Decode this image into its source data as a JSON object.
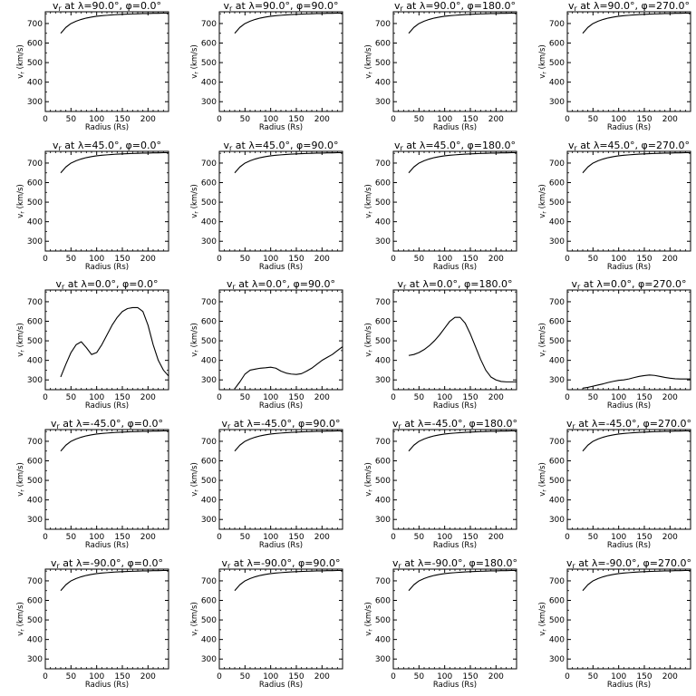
{
  "chart_data": {
    "type": "line",
    "layout": "grid",
    "rows": 5,
    "cols": 4,
    "xlabel": "Radius (Rs)",
    "ylabel": "v_r (km/s)",
    "xlim": [
      0,
      240
    ],
    "ylim": [
      250,
      760
    ],
    "xticks": [
      0,
      50,
      100,
      150,
      200
    ],
    "yticks": [
      300,
      400,
      500,
      600,
      700
    ],
    "line_color": "#000000",
    "panels": [
      {
        "title": "v_r at λ=90.0°, φ=0.0°",
        "lat": "90.0",
        "phi": "0.0",
        "profile": "fast"
      },
      {
        "title": "v_r at λ=90.0°, φ=90.0°",
        "lat": "90.0",
        "phi": "90.0",
        "profile": "fast"
      },
      {
        "title": "v_r at λ=90.0°, φ=180.0°",
        "lat": "90.0",
        "phi": "180.0",
        "profile": "fast"
      },
      {
        "title": "v_r at λ=90.0°, φ=270.0°",
        "lat": "90.0",
        "phi": "270.0",
        "profile": "fast"
      },
      {
        "title": "v_r at λ=45.0°, φ=0.0°",
        "lat": "45.0",
        "phi": "0.0",
        "profile": "fast"
      },
      {
        "title": "v_r at λ=45.0°, φ=90.0°",
        "lat": "45.0",
        "phi": "90.0",
        "profile": "fast"
      },
      {
        "title": "v_r at λ=45.0°, φ=180.0°",
        "lat": "45.0",
        "phi": "180.0",
        "profile": "fast"
      },
      {
        "title": "v_r at λ=45.0°, φ=270.0°",
        "lat": "45.0",
        "phi": "270.0",
        "profile": "fast"
      },
      {
        "title": "v_r at λ=0.0°, φ=0.0°",
        "lat": "0.0",
        "phi": "0.0",
        "x": [
          30,
          40,
          50,
          60,
          70,
          80,
          90,
          100,
          110,
          120,
          130,
          140,
          150,
          160,
          170,
          180,
          190,
          200,
          210,
          220,
          230,
          240
        ],
        "y": [
          315,
          380,
          440,
          480,
          495,
          465,
          430,
          440,
          480,
          530,
          580,
          620,
          650,
          665,
          670,
          670,
          650,
          580,
          480,
          400,
          350,
          320
        ]
      },
      {
        "title": "v_r at λ=0.0°, φ=90.0°",
        "lat": "0.0",
        "phi": "90.0",
        "x": [
          30,
          40,
          50,
          60,
          70,
          80,
          90,
          100,
          110,
          120,
          130,
          140,
          150,
          160,
          170,
          180,
          190,
          200,
          210,
          220,
          230,
          240
        ],
        "y": [
          255,
          290,
          330,
          350,
          355,
          360,
          362,
          365,
          360,
          345,
          335,
          330,
          328,
          332,
          345,
          360,
          380,
          400,
          415,
          430,
          450,
          470
        ]
      },
      {
        "title": "v_r at λ=0.0°, φ=180.0°",
        "lat": "0.0",
        "phi": "180.0",
        "x": [
          30,
          40,
          50,
          60,
          70,
          80,
          90,
          100,
          110,
          120,
          130,
          140,
          150,
          160,
          170,
          180,
          190,
          200,
          210,
          220,
          230,
          240
        ],
        "y": [
          425,
          430,
          440,
          455,
          475,
          500,
          530,
          565,
          600,
          620,
          620,
          590,
          535,
          470,
          405,
          350,
          315,
          300,
          292,
          290,
          290,
          290
        ]
      },
      {
        "title": "v_r at λ=0.0°, φ=270.0°",
        "lat": "0.0",
        "phi": "270.0",
        "x": [
          30,
          40,
          50,
          60,
          70,
          80,
          90,
          100,
          110,
          120,
          130,
          140,
          150,
          160,
          170,
          180,
          190,
          200,
          210,
          220,
          230,
          240
        ],
        "y": [
          258,
          262,
          268,
          274,
          280,
          287,
          293,
          298,
          300,
          305,
          312,
          318,
          322,
          325,
          323,
          318,
          313,
          309,
          306,
          305,
          305,
          305
        ]
      },
      {
        "title": "v_r at λ=-45.0°, φ=0.0°",
        "lat": "-45.0",
        "phi": "0.0",
        "profile": "fast"
      },
      {
        "title": "v_r at λ=-45.0°, φ=90.0°",
        "lat": "-45.0",
        "phi": "90.0",
        "profile": "fast"
      },
      {
        "title": "v_r at λ=-45.0°, φ=180.0°",
        "lat": "-45.0",
        "phi": "180.0",
        "profile": "fast"
      },
      {
        "title": "v_r at λ=-45.0°, φ=270.0°",
        "lat": "-45.0",
        "phi": "270.0",
        "profile": "fast"
      },
      {
        "title": "v_r at λ=-90.0°, φ=0.0°",
        "lat": "-90.0",
        "phi": "0.0",
        "profile": "fast"
      },
      {
        "title": "v_r at λ=-90.0°, φ=90.0°",
        "lat": "-90.0",
        "phi": "90.0",
        "profile": "fast"
      },
      {
        "title": "v_r at λ=-90.0°, φ=180.0°",
        "lat": "-90.0",
        "phi": "180.0",
        "profile": "fast"
      },
      {
        "title": "v_r at λ=-90.0°, φ=270.0°",
        "lat": "-90.0",
        "phi": "270.0",
        "profile": "fast"
      }
    ],
    "profiles": {
      "fast": {
        "x": [
          30,
          40,
          50,
          60,
          70,
          80,
          90,
          100,
          110,
          120,
          130,
          140,
          150,
          160,
          170,
          180,
          190,
          200,
          210,
          220,
          230,
          240
        ],
        "y": [
          650,
          680,
          700,
          712,
          721,
          728,
          733,
          737,
          740,
          742,
          744,
          746,
          747,
          748,
          749,
          750,
          751,
          751,
          752,
          752,
          753,
          753
        ]
      }
    }
  }
}
